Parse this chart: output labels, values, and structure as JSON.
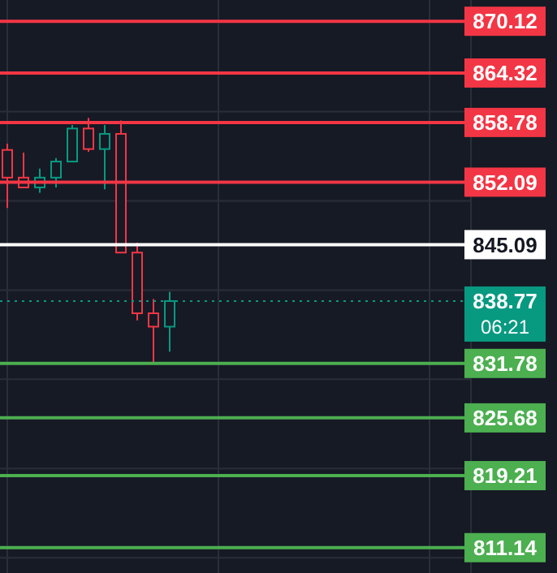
{
  "chart_data": {
    "type": "candlestick",
    "categories": [
      null,
      null,
      null,
      null,
      null,
      null,
      null,
      null,
      null,
      null,
      null,
      null,
      null,
      null,
      null,
      null,
      null,
      null,
      null,
      null,
      null,
      null,
      null,
      null,
      null,
      null,
      null,
      null,
      null
    ],
    "ohlc": [
      [
        855.7,
        856.4,
        849.2,
        852.6
      ],
      [
        852.6,
        855.4,
        851.5,
        851.5
      ],
      [
        851.5,
        853.6,
        850.9,
        852.6
      ],
      [
        852.6,
        854.8,
        851.5,
        854.4
      ],
      [
        854.4,
        858.5,
        854.4,
        858.1
      ],
      [
        858.1,
        859.3,
        855.5,
        855.8
      ],
      [
        855.8,
        858.5,
        851.3,
        857.5
      ],
      [
        857.5,
        859.0,
        844.2,
        844.2
      ],
      [
        844.2,
        845.3,
        836.6,
        837.4
      ],
      [
        837.4,
        839.0,
        831.8,
        835.9
      ],
      [
        835.9,
        839.8,
        833.1,
        838.77
      ],
      null,
      null,
      null,
      null,
      null,
      null,
      null,
      null,
      null,
      null,
      null,
      null,
      null,
      null,
      null,
      null,
      null,
      null
    ],
    "colors": [
      "#f23645",
      "#f23645",
      "#089981",
      "#089981",
      "#089981",
      "#f23645",
      "#089981",
      "#f23645",
      "#f23645",
      "#f23645",
      "#089981",
      null,
      null,
      null,
      null,
      null,
      null,
      null,
      null,
      null,
      null,
      null,
      null,
      null,
      null,
      null,
      null,
      null,
      null
    ],
    "ylim": [
      808.3,
      872.5
    ],
    "yticks": [
      {
        "value": 810,
        "label": null
      },
      {
        "value": 820,
        "label": null
      },
      {
        "value": 830,
        "label": null
      },
      {
        "value": 840,
        "label": null
      },
      {
        "value": 850,
        "label": null
      },
      {
        "value": 860,
        "label": null
      }
    ],
    "grid": true,
    "ref_lines": [
      {
        "axis": "y",
        "value": 870.12,
        "label": "870.12",
        "color": "#f23645"
      },
      {
        "axis": "y",
        "value": 864.32,
        "label": "864.32",
        "color": "#f23645"
      },
      {
        "axis": "y",
        "value": 858.78,
        "label": "858.78",
        "color": "#f23645"
      },
      {
        "axis": "y",
        "value": 852.09,
        "label": "852.09",
        "color": "#f23645"
      },
      {
        "axis": "y",
        "value": 845.09,
        "label": "845.09",
        "color": "#ffffff"
      },
      {
        "axis": "y",
        "value": 838.77,
        "label": "838.77",
        "color": "#089981",
        "line_style": "dotted"
      },
      {
        "axis": "y",
        "value": 831.78,
        "label": "831.78",
        "color": "#4caf50"
      },
      {
        "axis": "y",
        "value": 825.68,
        "label": "825.68",
        "color": "#4caf50"
      },
      {
        "axis": "y",
        "value": 819.21,
        "label": "819.21",
        "color": "#4caf50"
      },
      {
        "axis": "y",
        "value": 811.14,
        "label": "811.14",
        "color": "#4caf50"
      }
    ],
    "annotations": [
      "06:21"
    ]
  }
}
